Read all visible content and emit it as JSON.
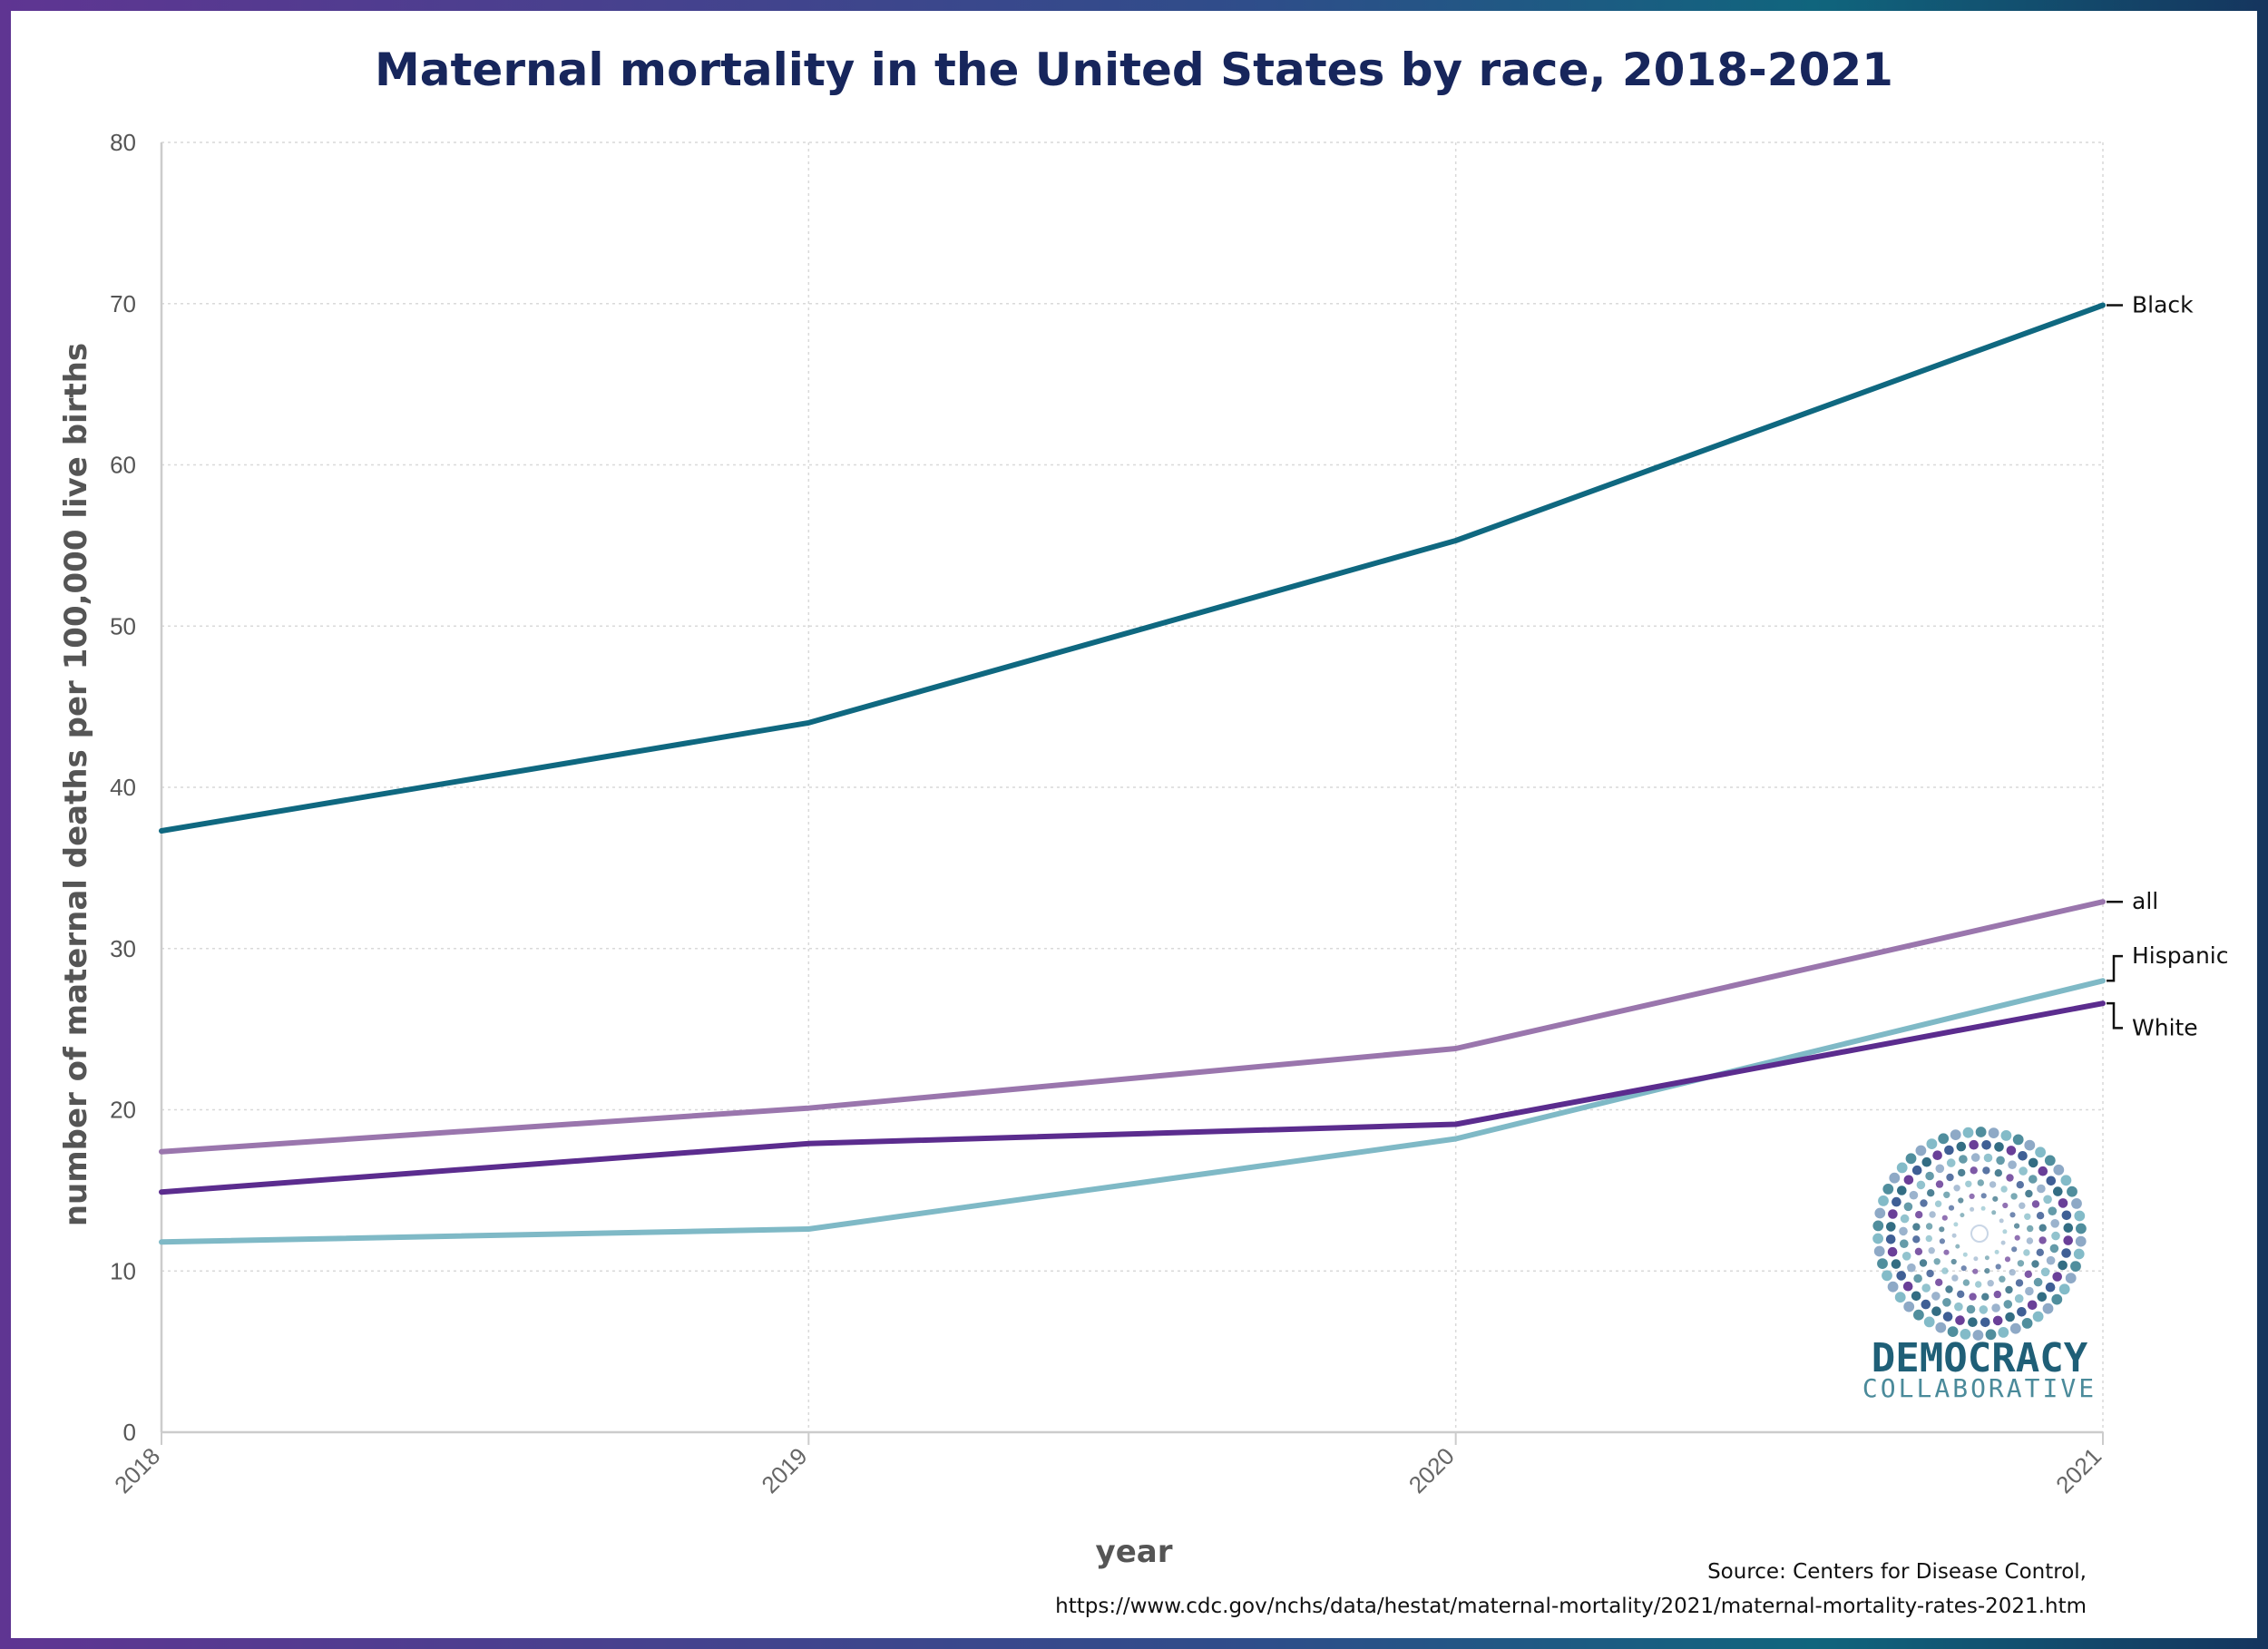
{
  "chart_data": {
    "type": "line",
    "title": "Maternal mortality in the United States by race, 2018-2021",
    "xlabel": "year",
    "ylabel": "number of maternal deaths per 100,000 live births",
    "x": [
      "2018",
      "2019",
      "2020",
      "2021"
    ],
    "ylim": [
      0,
      80
    ],
    "yticks": [
      "0",
      "10",
      "20",
      "30",
      "40",
      "50",
      "60",
      "70",
      "80"
    ],
    "grid": true,
    "legend": "direct labels at line ends (right)",
    "series": [
      {
        "name": "Black",
        "values": [
          37.3,
          44.0,
          55.3,
          69.9
        ],
        "color": "#0f6880"
      },
      {
        "name": "all",
        "values": [
          17.4,
          20.1,
          23.8,
          32.9
        ],
        "color": "#9a76ad"
      },
      {
        "name": "Hispanic",
        "values": [
          11.8,
          12.6,
          18.2,
          28.0
        ],
        "color": "#7fb9c6"
      },
      {
        "name": "White",
        "values": [
          14.9,
          17.9,
          19.1,
          26.6
        ],
        "color": "#5b2c8e"
      }
    ]
  },
  "source": {
    "line1": "Source: Centers for Disease Control,",
    "line2": "https://www.cdc.gov/nchs/data/hestat/maternal-mortality/2021/maternal-mortality-rates-2021.htm"
  },
  "logo": {
    "name": "DEMOCRACY",
    "sub": "COLLABORATIVE",
    "icon": "dot-burst-icon",
    "colors": [
      "#1f5f77",
      "#4a8a9a",
      "#5b2c8e",
      "#8aa6c4",
      "#2c4f8a",
      "#7fb9c6"
    ]
  },
  "colors": {
    "title": "#17265c",
    "grid": "#d9d9d9",
    "axis": "#cccccc"
  }
}
